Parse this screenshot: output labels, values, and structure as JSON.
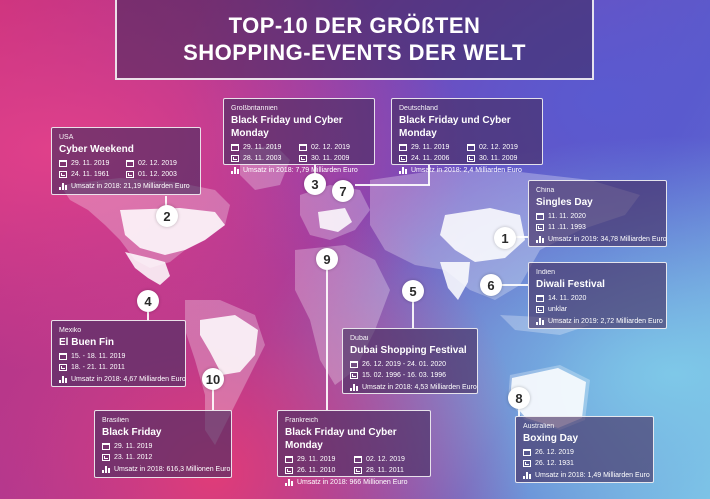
{
  "title": {
    "line1": "TOP-10 DER GRÖßTEN",
    "line2": "SHOPPING-EVENTS DER WELT"
  },
  "icons": {
    "date": "calendar-icon",
    "first": "history-icon",
    "revenue": "bar-chart-icon"
  },
  "cards": {
    "usa": {
      "country": "USA",
      "event": "Cyber Weekend",
      "d1": "29. 11. 2019",
      "d2": "02. 12. 2019",
      "h1": "24. 11. 1961",
      "h2": "01. 12. 2003",
      "revenue": "Umsatz in 2018: 21,19 Milliarden Euro"
    },
    "gb": {
      "country": "Großbritannien",
      "event": "Black Friday und Cyber Monday",
      "d1": "29. 11. 2019",
      "d2": "02. 12. 2019",
      "h1": "28. 11. 2003",
      "h2": "30. 11. 2009",
      "revenue": "Umsatz in 2018: 7,79 Milliarden Euro"
    },
    "de": {
      "country": "Deutschland",
      "event": "Black Friday und Cyber Monday",
      "d1": "29. 11. 2019",
      "d2": "02. 12. 2019",
      "h1": "24. 11. 2006",
      "h2": "30. 11. 2009",
      "revenue": "Umsatz in 2018:   2,4 Milliarden Euro"
    },
    "cn": {
      "country": "China",
      "event": "Singles Day",
      "d1": "11. 11. 2020",
      "h1": "11 .11. 1993",
      "revenue": "Umsatz in 2019: 34,78 Milliarden Euro"
    },
    "in": {
      "country": "Indien",
      "event": "Diwali Festival",
      "d1": "14. 11. 2020",
      "h1": "unklar",
      "revenue": "Umsatz in 2019: 2,72 Milliarden Euro"
    },
    "mx": {
      "country": "Mexiko",
      "event": "El Buen Fin",
      "d1": "15. - 18. 11. 2019",
      "h1": "18. - 21. 11. 2011",
      "revenue": "Umsatz in 2018: 4,67 Milliarden Euro"
    },
    "ae": {
      "country": "Dubai",
      "event": "Dubai Shopping Festival",
      "d1": "26. 12. 2019 - 24. 01. 2020",
      "h1": "15. 02. 1996 - 16. 03. 1996",
      "revenue": "Umsatz in 2018: 4,53 Milliarden Euro"
    },
    "br": {
      "country": "Brasilien",
      "event": "Black Friday",
      "d1": "29. 11. 2019",
      "h1": "23. 11. 2012",
      "revenue": "Umsatz in 2018: 616,3 Millionen Euro"
    },
    "fr": {
      "country": "Frankreich",
      "event": "Black Friday und Cyber Monday",
      "d1": "29. 11. 2019",
      "d2": "02. 12. 2019",
      "h1": "26. 11. 2010",
      "h2": "28. 11. 2011",
      "revenue": "Umsatz in 2018: 966 Millionen Euro"
    },
    "au": {
      "country": "Australien",
      "event": "Boxing Day",
      "d1": "26. 12. 2019",
      "h1": "26. 12. 1931",
      "revenue": "Umsatz in 2018: 1,49 Milliarden Euro"
    }
  },
  "markers": {
    "m1": "1",
    "m2": "2",
    "m3": "3",
    "m4": "4",
    "m5": "5",
    "m6": "6",
    "m7": "7",
    "m8": "8",
    "m9": "9",
    "m10": "10"
  }
}
